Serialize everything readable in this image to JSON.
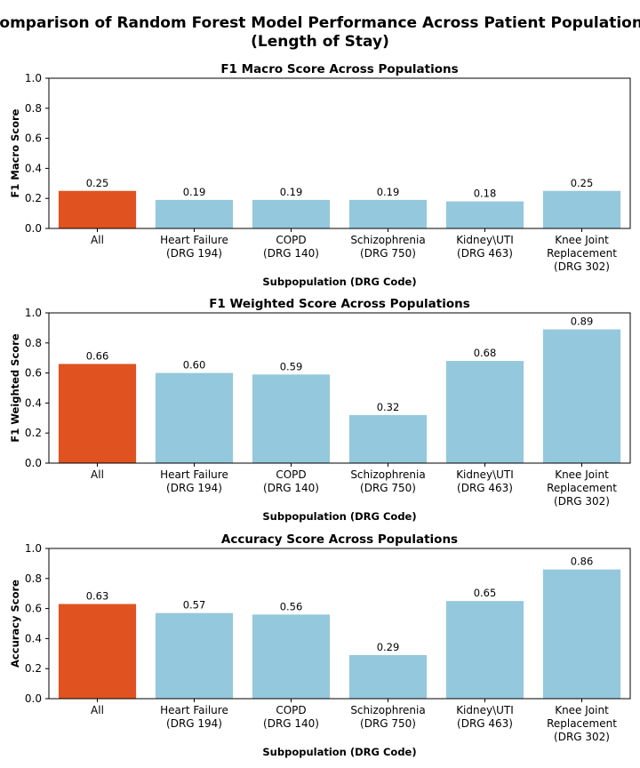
{
  "figure": {
    "suptitle_lines": [
      "Comparison of Random Forest Model Performance Across Patient Populations",
      "(Length of Stay)"
    ]
  },
  "colors": {
    "highlight": "#e05220",
    "default": "#94c8dd",
    "axis": "#000000"
  },
  "chart_data": [
    {
      "type": "bar",
      "title": "F1 Macro Score Across Populations",
      "xlabel": "Subpopulation (DRG Code)",
      "ylabel": "F1 Macro Score",
      "ylim": [
        0,
        1.0
      ],
      "yticks": [
        "0.0",
        "0.2",
        "0.4",
        "0.6",
        "0.8",
        "1.0"
      ],
      "categories": [
        [
          "All"
        ],
        [
          "Heart Failure",
          "(DRG 194)"
        ],
        [
          "COPD",
          "(DRG 140)"
        ],
        [
          "Schizophrenia",
          "(DRG 750)"
        ],
        [
          "Kidney\\UTI",
          "(DRG 463)"
        ],
        [
          "Knee Joint",
          "Replacement",
          "(DRG 302)"
        ]
      ],
      "values": [
        0.25,
        0.19,
        0.19,
        0.19,
        0.18,
        0.25
      ],
      "value_labels": [
        "0.25",
        "0.19",
        "0.19",
        "0.19",
        "0.18",
        "0.25"
      ],
      "grid": false,
      "legend": "none"
    },
    {
      "type": "bar",
      "title": "F1 Weighted Score Across Populations",
      "xlabel": "Subpopulation (DRG Code)",
      "ylabel": "F1 Weighted Score",
      "ylim": [
        0,
        1.0
      ],
      "yticks": [
        "0.0",
        "0.2",
        "0.4",
        "0.6",
        "0.8",
        "1.0"
      ],
      "categories": [
        [
          "All"
        ],
        [
          "Heart Failure",
          "(DRG 194)"
        ],
        [
          "COPD",
          "(DRG 140)"
        ],
        [
          "Schizophrenia",
          "(DRG 750)"
        ],
        [
          "Kidney\\UTI",
          "(DRG 463)"
        ],
        [
          "Knee Joint",
          "Replacement",
          "(DRG 302)"
        ]
      ],
      "values": [
        0.66,
        0.6,
        0.59,
        0.32,
        0.68,
        0.89
      ],
      "value_labels": [
        "0.66",
        "0.60",
        "0.59",
        "0.32",
        "0.68",
        "0.89"
      ],
      "grid": false,
      "legend": "none"
    },
    {
      "type": "bar",
      "title": "Accuracy Score Across Populations",
      "xlabel": "Subpopulation (DRG Code)",
      "ylabel": "Accuracy Score",
      "ylim": [
        0,
        1.0
      ],
      "yticks": [
        "0.0",
        "0.2",
        "0.4",
        "0.6",
        "0.8",
        "1.0"
      ],
      "categories": [
        [
          "All"
        ],
        [
          "Heart Failure",
          "(DRG 194)"
        ],
        [
          "COPD",
          "(DRG 140)"
        ],
        [
          "Schizophrenia",
          "(DRG 750)"
        ],
        [
          "Kidney\\UTI",
          "(DRG 463)"
        ],
        [
          "Knee Joint",
          "Replacement",
          "(DRG 302)"
        ]
      ],
      "values": [
        0.63,
        0.57,
        0.56,
        0.29,
        0.65,
        0.86
      ],
      "value_labels": [
        "0.63",
        "0.57",
        "0.56",
        "0.29",
        "0.65",
        "0.86"
      ],
      "grid": false,
      "legend": "none"
    }
  ]
}
